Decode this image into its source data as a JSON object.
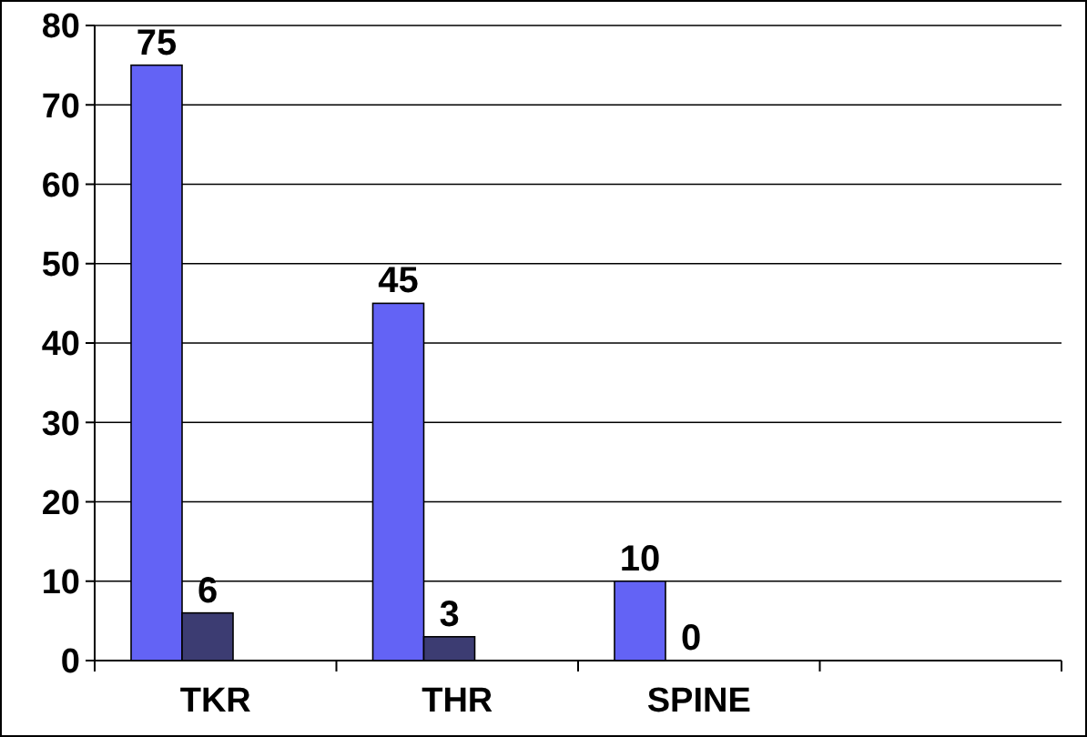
{
  "chart_data": {
    "type": "bar",
    "categories": [
      "TKR",
      "THR",
      "SPINE",
      null
    ],
    "series": [
      {
        "color": "#6363f5",
        "values": [
          75,
          45,
          10,
          null
        ]
      },
      {
        "color": "#3c3c72",
        "values": [
          6,
          3,
          0,
          null
        ]
      }
    ],
    "ylim": [
      0,
      80
    ],
    "yticks": [
      0,
      10,
      20,
      30,
      40,
      50,
      60,
      70,
      80
    ],
    "grid": "y",
    "data_labels": true
  }
}
